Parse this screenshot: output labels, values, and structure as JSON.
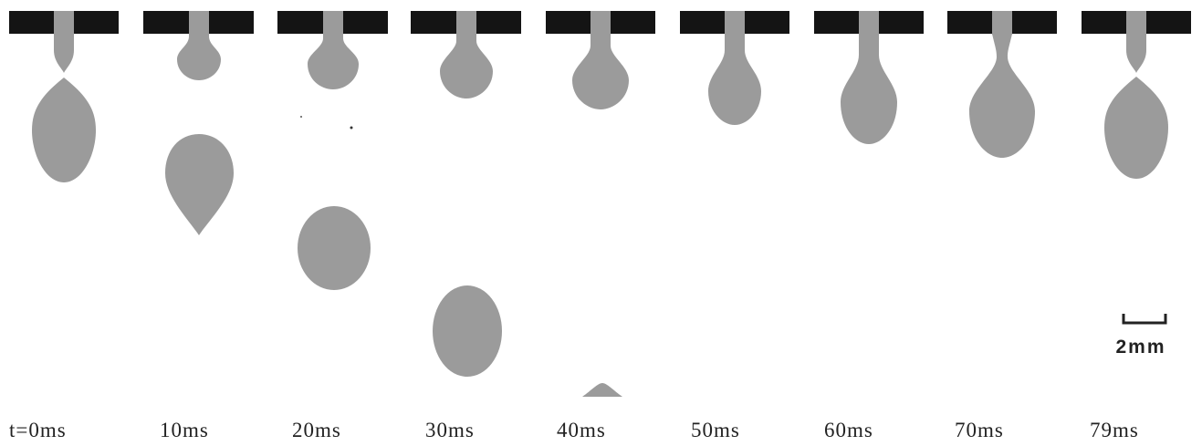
{
  "frames": [
    {
      "label": "t=0ms"
    },
    {
      "label": "10ms"
    },
    {
      "label": "20ms"
    },
    {
      "label": "30ms"
    },
    {
      "label": "40ms"
    },
    {
      "label": "50ms"
    },
    {
      "label": "60ms"
    },
    {
      "label": "70ms"
    },
    {
      "label": "79ms"
    }
  ],
  "scale_bar": {
    "label": "2mm"
  }
}
